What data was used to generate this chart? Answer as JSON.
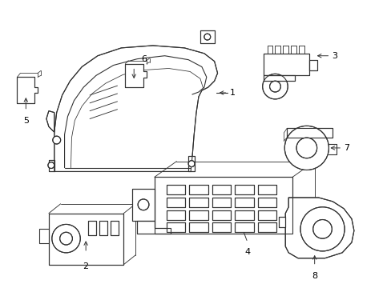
{
  "background_color": "#ffffff",
  "line_color": "#333333",
  "fig_width": 4.89,
  "fig_height": 3.6,
  "dpi": 100
}
